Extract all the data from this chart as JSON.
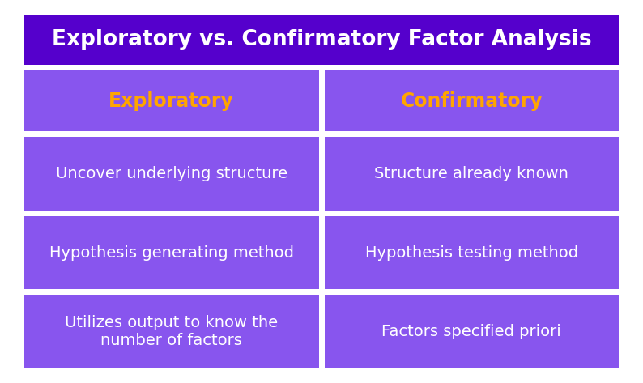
{
  "title": "Exploratory vs. Confirmatory Factor Analysis",
  "title_bg": "#5500CC",
  "title_color": "#FFFFFF",
  "title_fontsize": 19,
  "header_bg": "#8855EE",
  "cell_bg": "#8855EE",
  "outer_bg": "#FFFFFF",
  "header_color": "#FFA500",
  "cell_text_color": "#FFFFFF",
  "header_fontsize": 17,
  "cell_fontsize": 14,
  "col1_header": "Exploratory",
  "col2_header": "Confirmatory",
  "rows": [
    [
      "Uncover underlying structure",
      "Structure already known"
    ],
    [
      "Hypothesis generating method",
      "Hypothesis testing method"
    ],
    [
      "Utilizes output to know the\nnumber of factors",
      "Factors specified priori"
    ]
  ]
}
